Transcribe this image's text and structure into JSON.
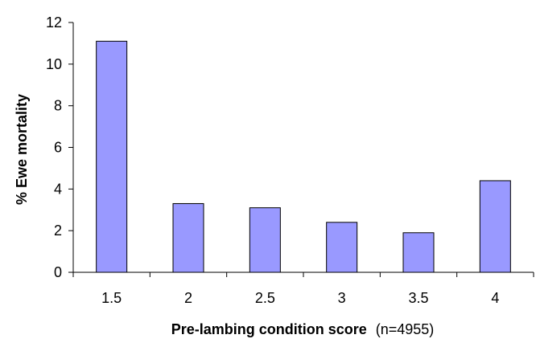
{
  "chart_data": {
    "type": "bar",
    "categories": [
      "1.5",
      "2",
      "2.5",
      "3",
      "3.5",
      "4"
    ],
    "series": [
      {
        "values": [
          11.1,
          3.3,
          3.1,
          2.4,
          1.9,
          4.4
        ]
      }
    ],
    "xlabel_bold": "Pre-lambing condition score",
    "xlabel_normal": "(n=4955)",
    "ylabel": "% Ewe mortality",
    "ylim": [
      0,
      12
    ],
    "yticks": [
      "0",
      "2",
      "4",
      "6",
      "8",
      "10",
      "12"
    ],
    "grid": false,
    "bar_color": "#9999ff"
  }
}
